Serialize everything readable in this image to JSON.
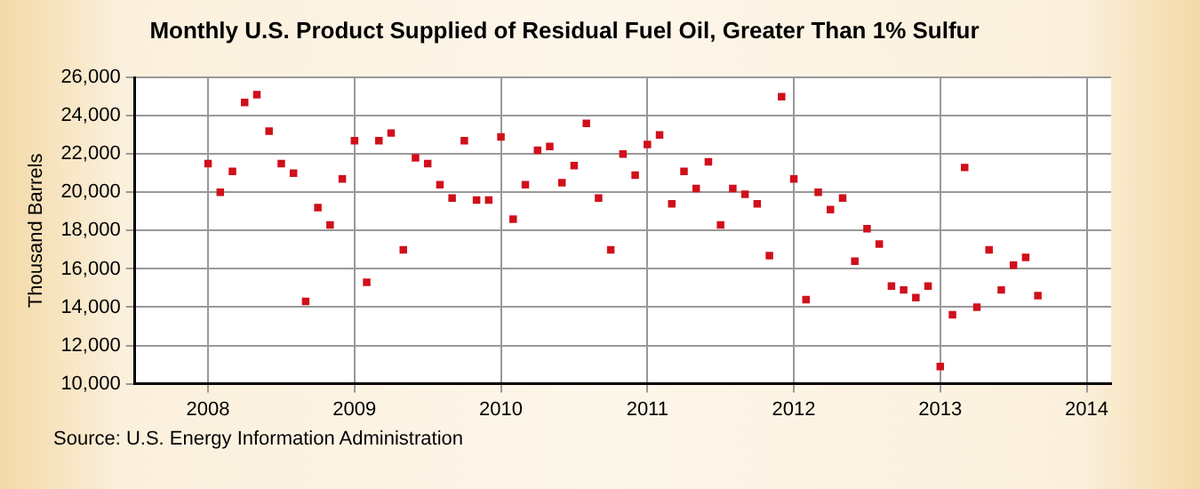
{
  "chart_data": {
    "type": "scatter",
    "title": "Monthly U.S. Product Supplied of Residual Fuel Oil, Greater Than 1% Sulfur",
    "ylabel": "Thousand Barrels",
    "x": [
      "2008-01",
      "2008-02",
      "2008-03",
      "2008-04",
      "2008-05",
      "2008-06",
      "2008-07",
      "2008-08",
      "2008-09",
      "2008-10",
      "2008-11",
      "2008-12",
      "2009-01",
      "2009-02",
      "2009-03",
      "2009-04",
      "2009-05",
      "2009-06",
      "2009-07",
      "2009-08",
      "2009-09",
      "2009-10",
      "2009-11",
      "2009-12",
      "2010-01",
      "2010-02",
      "2010-03",
      "2010-04",
      "2010-05",
      "2010-06",
      "2010-07",
      "2010-08",
      "2010-09",
      "2010-10",
      "2010-11",
      "2010-12",
      "2011-01",
      "2011-02",
      "2011-03",
      "2011-04",
      "2011-05",
      "2011-06",
      "2011-07",
      "2011-08",
      "2011-09",
      "2011-10",
      "2011-11",
      "2011-12",
      "2012-01",
      "2012-02",
      "2012-03",
      "2012-04",
      "2012-05",
      "2012-06",
      "2012-07",
      "2012-08",
      "2012-09",
      "2012-10",
      "2012-11",
      "2012-12",
      "2013-01",
      "2013-02",
      "2013-03",
      "2013-04",
      "2013-05",
      "2013-06",
      "2013-07",
      "2013-08",
      "2013-09"
    ],
    "series": [
      {
        "color": "#d0101c",
        "values": [
          21500,
          20000,
          21100,
          24700,
          25100,
          23200,
          21500,
          21000,
          14300,
          19200,
          18300,
          20700,
          22700,
          15300,
          22700,
          23100,
          17000,
          21800,
          21500,
          20400,
          19700,
          22700,
          19600,
          19600,
          22900,
          18600,
          20400,
          22200,
          22400,
          20500,
          21400,
          23600,
          19700,
          17000,
          22000,
          20900,
          22500,
          23000,
          19400,
          21100,
          20200,
          21600,
          18300,
          20200,
          19900,
          19400,
          16700,
          25000,
          20700,
          14400,
          20000,
          19100,
          19700,
          16400,
          18100,
          17300,
          15100,
          14900,
          14500,
          15100,
          10900,
          13600,
          21300,
          14000,
          17000,
          14900,
          16200,
          16600,
          14600
        ]
      }
    ],
    "xlim": [
      "2007-07",
      "2014-03"
    ],
    "xticks": [
      "2008",
      "2009",
      "2010",
      "2011",
      "2012",
      "2013",
      "2014"
    ],
    "ylim": [
      10000,
      26000
    ],
    "yticks": [
      {
        "value": 10000,
        "label": "10,000"
      },
      {
        "value": 12000,
        "label": "12,000"
      },
      {
        "value": 14000,
        "label": "14,000"
      },
      {
        "value": 16000,
        "label": "16,000"
      },
      {
        "value": 18000,
        "label": "18,000"
      },
      {
        "value": 20000,
        "label": "20,000"
      },
      {
        "value": 22000,
        "label": "22,000"
      },
      {
        "value": 24000,
        "label": "24,000"
      },
      {
        "value": 26000,
        "label": "26,000"
      }
    ],
    "grid": true,
    "marker": "square",
    "legend": false,
    "annotations": [
      "Source: U.S. Energy Information Administration"
    ]
  }
}
